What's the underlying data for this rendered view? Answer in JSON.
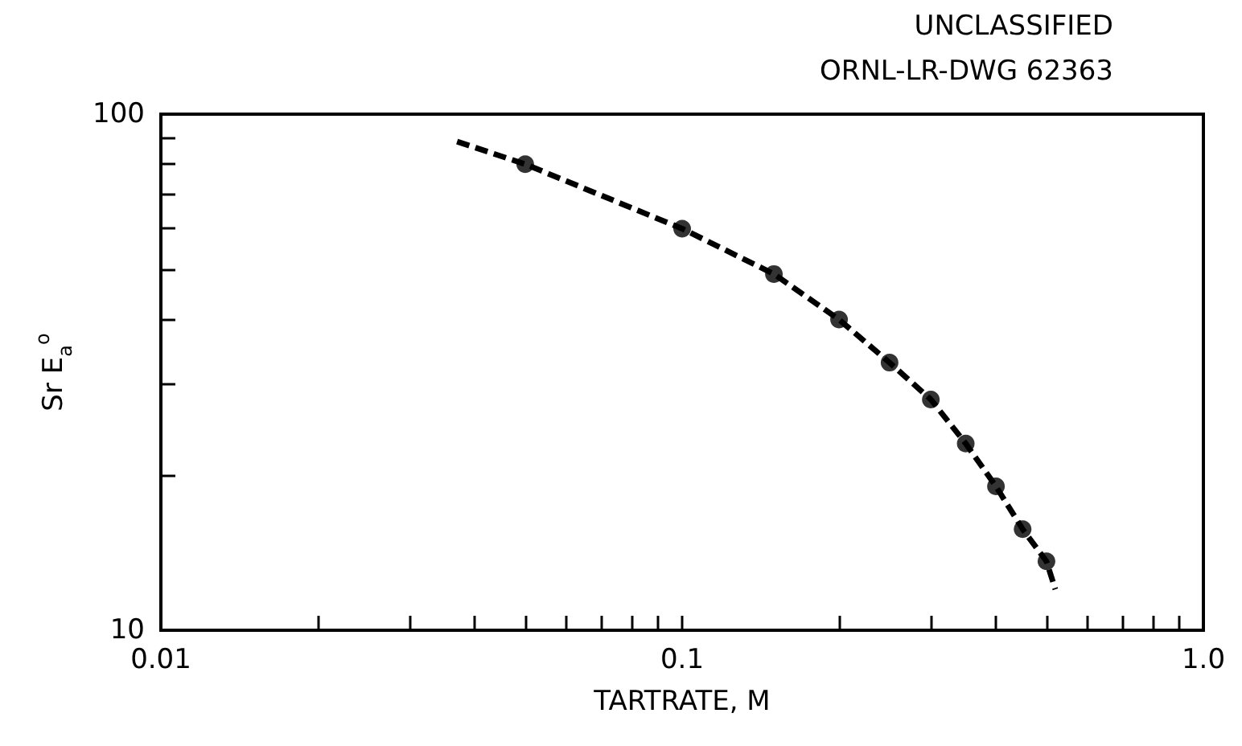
{
  "chart_data": {
    "type": "scatter",
    "xlabel": "TARTRATE, M",
    "ylabel": "Sr E$_{a}$$^{o}$",
    "annotations": [
      "UNCLASSIFIED",
      "ORNL-LR-DWG 62363"
    ],
    "log": "xy",
    "grid": false,
    "xlim": [
      0.01,
      1
    ],
    "ylim": [
      10,
      100
    ],
    "xticks": [
      0.01,
      {
        "value": 0.02,
        "label": null
      },
      {
        "value": 0.03,
        "label": null
      },
      {
        "value": 0.04,
        "label": null
      },
      {
        "value": 0.05,
        "label": null
      },
      {
        "value": 0.06,
        "label": null
      },
      {
        "value": 0.07,
        "label": null
      },
      {
        "value": 0.08,
        "label": null
      },
      {
        "value": 0.09,
        "label": null
      },
      0.1,
      {
        "value": 0.2,
        "label": null
      },
      {
        "value": 0.3,
        "label": null
      },
      {
        "value": 0.4,
        "label": null
      },
      {
        "value": 0.5,
        "label": null
      },
      {
        "value": 0.6,
        "label": null
      },
      {
        "value": 0.7,
        "label": null
      },
      {
        "value": 0.8,
        "label": null
      },
      {
        "value": 0.9,
        "label": null
      },
      {
        "value": 1,
        "label": "1.0"
      }
    ],
    "yticks": [
      10,
      {
        "value": 20,
        "label": null
      },
      {
        "value": 30,
        "label": null
      },
      {
        "value": 40,
        "label": null
      },
      {
        "value": 50,
        "label": null
      },
      {
        "value": 60,
        "label": null
      },
      {
        "value": 70,
        "label": null
      },
      {
        "value": 80,
        "label": null
      },
      {
        "value": 90,
        "label": null
      },
      100
    ],
    "series": [
      {
        "color": "#000000",
        "marker": "circle",
        "x": [
          0.05,
          0.1,
          0.15,
          0.2,
          0.25,
          0.3,
          0.35,
          0.4,
          0.45,
          0.5
        ],
        "values": [
          80,
          60,
          49,
          40,
          33,
          28,
          23,
          19,
          15.7,
          13.6
        ]
      },
      {
        "type": "line",
        "color": "#000000",
        "marker": "none",
        "line_style": "dashed",
        "x": [
          0.037,
          0.05,
          0.1,
          0.15,
          0.2,
          0.25,
          0.3,
          0.35,
          0.4,
          0.45,
          0.5,
          0.52
        ],
        "values": [
          88.5,
          80,
          60,
          49,
          40,
          33,
          28,
          23,
          19,
          15.7,
          13.6,
          12
        ]
      }
    ]
  }
}
